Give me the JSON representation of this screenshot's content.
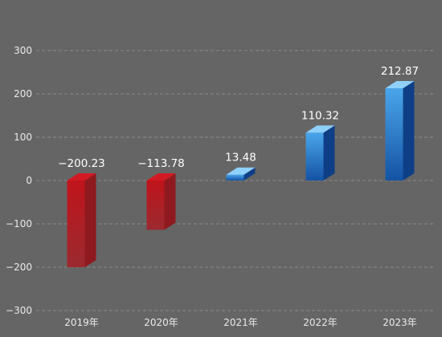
{
  "chart_data": {
    "type": "bar",
    "title": "",
    "xlabel": "",
    "ylabel": "",
    "categories": [
      "2019年",
      "2020年",
      "2021年",
      "2022年",
      "2023年"
    ],
    "values": [
      -200.23,
      -113.78,
      13.48,
      110.32,
      212.87
    ],
    "data_labels": [
      "−200.23",
      "−113.78",
      "13.48",
      "110.32",
      "212.87"
    ],
    "yticks": [
      300,
      200,
      100,
      0,
      -100,
      -200,
      -300
    ],
    "ytick_labels": [
      "300",
      "200",
      "100",
      "0",
      "−100",
      "−200",
      "−300"
    ],
    "ylim": [
      -300,
      300
    ],
    "grid": true,
    "style": "3d-column",
    "colors": {
      "negative_front_top": "#c0141b",
      "negative_front_bottom": "#9a2a30",
      "negative_top": "#d21a22",
      "negative_side": "#8e1a1f",
      "positive_front_top": "#4aa6ea",
      "positive_front_bottom": "#1452a4",
      "positive_top": "#8fd0fa",
      "positive_side": "#0e3f86",
      "grid": "#8a8a8a",
      "text": "#eaeaea"
    }
  }
}
